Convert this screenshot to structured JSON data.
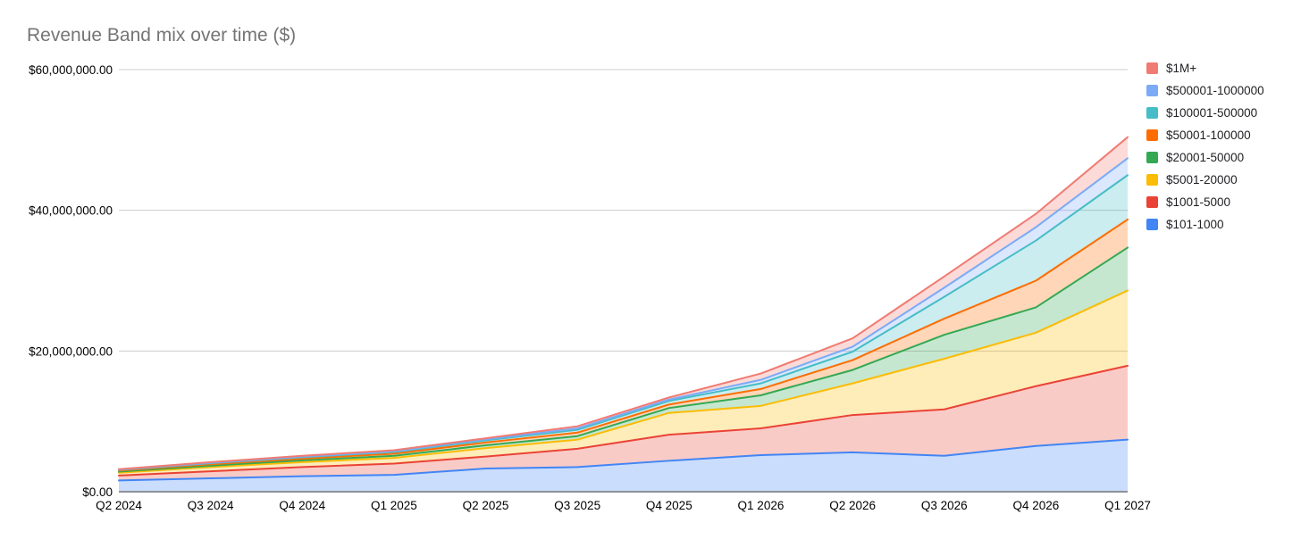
{
  "chart": {
    "title": "Revenue Band mix over time ($)"
  },
  "chart_data": {
    "type": "area",
    "stacked": true,
    "title": "Revenue Band mix over time ($)",
    "xlabel": "",
    "ylabel": "",
    "grid": true,
    "legend_position": "right",
    "ylim": [
      0,
      60000000
    ],
    "y_ticks": [
      {
        "label": "$0.00",
        "value": 0
      },
      {
        "label": "$20,000,000.00",
        "value": 20000000
      },
      {
        "label": "$40,000,000.00",
        "value": 40000000
      },
      {
        "label": "$60,000,000.00",
        "value": 60000000
      }
    ],
    "categories": [
      "Q2 2024",
      "Q3 2024",
      "Q4 2024",
      "Q1 2025",
      "Q2 2025",
      "Q3 2025",
      "Q4 2025",
      "Q1 2026",
      "Q2 2026",
      "Q3 2026",
      "Q4 2026",
      "Q1 2027"
    ],
    "series": [
      {
        "name": "$101-1000",
        "color": "#4285F4",
        "values": [
          1600000,
          1900000,
          2200000,
          2400000,
          3300000,
          3500000,
          4400000,
          5200000,
          5600000,
          5100000,
          6500000,
          7400000
        ]
      },
      {
        "name": "$1001-5000",
        "color": "#EA4335",
        "values": [
          700000,
          1000000,
          1300000,
          1600000,
          1700000,
          2600000,
          3700000,
          3800000,
          5300000,
          6600000,
          8500000,
          10500000
        ]
      },
      {
        "name": "$5001-20000",
        "color": "#FBBC04",
        "values": [
          400000,
          600000,
          700000,
          800000,
          1200000,
          1300000,
          3100000,
          3200000,
          4500000,
          7200000,
          7600000,
          10700000
        ]
      },
      {
        "name": "$20001-50000",
        "color": "#34A853",
        "values": [
          150000,
          200000,
          250000,
          300000,
          400000,
          500000,
          700000,
          1500000,
          1900000,
          3400000,
          3600000,
          6100000
        ]
      },
      {
        "name": "$50001-100000",
        "color": "#FF6D01",
        "values": [
          150000,
          200000,
          250000,
          300000,
          400000,
          500000,
          500000,
          900000,
          1400000,
          2300000,
          3800000,
          4000000
        ]
      },
      {
        "name": "$100001-500000",
        "color": "#46BDC6",
        "values": [
          100000,
          150000,
          200000,
          250000,
          300000,
          400000,
          500000,
          800000,
          1200000,
          3100000,
          5700000,
          6300000
        ]
      },
      {
        "name": "$500001-1000000",
        "color": "#7BAAF7",
        "values": [
          50000,
          50000,
          100000,
          100000,
          150000,
          200000,
          200000,
          500000,
          700000,
          1300000,
          1900000,
          2400000
        ]
      },
      {
        "name": "$1M+",
        "color": "#F07B72",
        "values": [
          50000,
          100000,
          100000,
          150000,
          150000,
          300000,
          300000,
          900000,
          1200000,
          1600000,
          1900000,
          3000000
        ]
      }
    ],
    "legend": [
      "$1M+",
      "$500001-1000000",
      "$100001-500000",
      "$50001-100000",
      "$20001-50000",
      "$5001-20000",
      "$1001-5000",
      "$101-1000"
    ]
  }
}
